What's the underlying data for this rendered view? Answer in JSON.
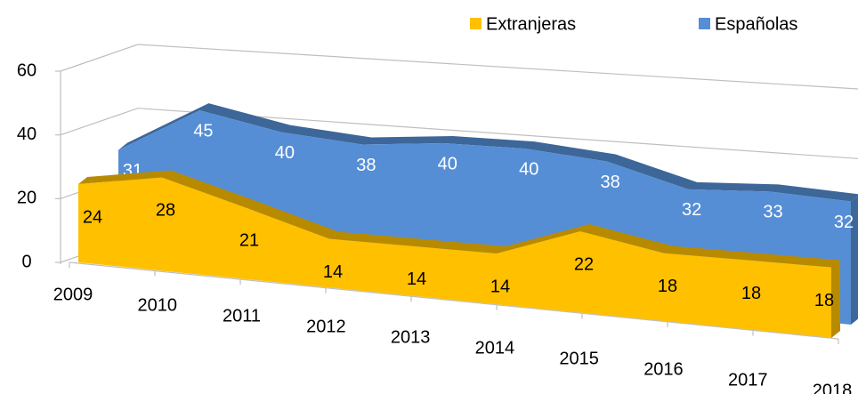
{
  "chart_data": {
    "type": "area3d",
    "categories": [
      "2009",
      "2010",
      "2011",
      "2012",
      "2013",
      "2014",
      "2015",
      "2016",
      "2017",
      "2018"
    ],
    "series": [
      {
        "name": "Extranjeras",
        "color": "#FFC000",
        "values": [
          24,
          28,
          21,
          14,
          14,
          14,
          22,
          18,
          18,
          18
        ]
      },
      {
        "name": "Españolas",
        "color": "#558ED5",
        "values": [
          31,
          45,
          40,
          38,
          40,
          40,
          38,
          32,
          33,
          32
        ]
      }
    ],
    "ylim": [
      0,
      60
    ],
    "yticks": [
      0,
      20,
      40,
      60
    ],
    "grid": true,
    "legend": "top-right"
  }
}
